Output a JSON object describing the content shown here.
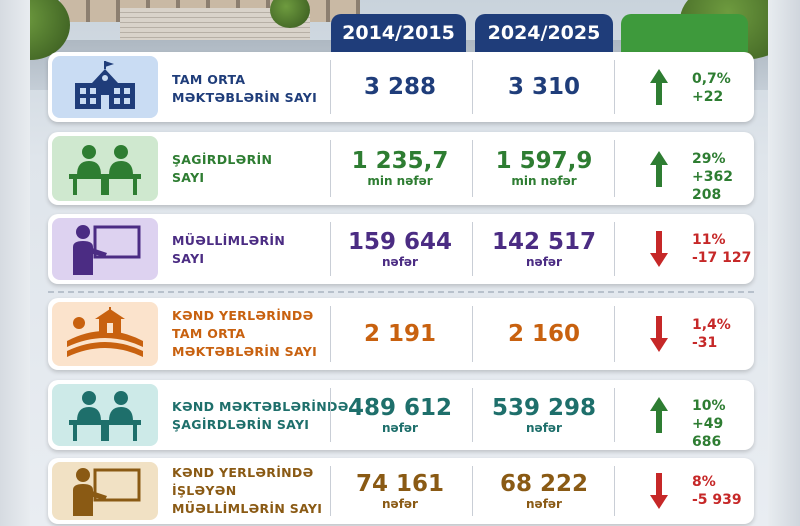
{
  "headers": {
    "col1": "2014/2015",
    "col2": "2024/2025"
  },
  "rows": [
    {
      "label": [
        "TAM ORTA",
        "MƏKTƏBLƏRİN SAYI"
      ],
      "v1": "3 288",
      "u1": "",
      "v2": "3 310",
      "u2": "",
      "direction": "up",
      "pct": "0,7%",
      "delta": "+22",
      "icon": "school-building-icon",
      "color": "#1f3d7a"
    },
    {
      "label": [
        "ŞAGİRDLƏRİN",
        "SAYI"
      ],
      "v1": "1 235,7",
      "u1": "min nəfər",
      "v2": "1 597,9",
      "u2": "min nəfər",
      "direction": "up",
      "pct": "29%",
      "delta": "+362 208",
      "icon": "students-at-desks-icon",
      "color": "#2e7d32"
    },
    {
      "label": [
        "MÜƏLLİMLƏRİN",
        "SAYI"
      ],
      "v1": "159 644",
      "u1": "nəfər",
      "v2": "142 517",
      "u2": "nəfər",
      "direction": "down",
      "pct": "11%",
      "delta": "-17 127",
      "icon": "teacher-at-board-icon",
      "color": "#4b2c83"
    },
    {
      "label": [
        "KƏND YERLƏRİNDƏ",
        "TAM ORTA",
        "MƏKTƏBLƏRİN SAYI"
      ],
      "v1": "2 191",
      "u1": "",
      "v2": "2 160",
      "u2": "",
      "direction": "down",
      "pct": "1,4%",
      "delta": "-31",
      "icon": "rural-school-icon",
      "color": "#c8610f"
    },
    {
      "label": [
        "KƏND MƏKTƏBLƏRİNDƏ",
        "ŞAGİRDLƏRİN SAYI"
      ],
      "v1": "489 612",
      "u1": "nəfər",
      "v2": "539 298",
      "u2": "nəfər",
      "direction": "up",
      "pct": "10%",
      "delta": "+49 686",
      "icon": "students-at-desks-icon",
      "color": "#1e6f6b"
    },
    {
      "label": [
        "KƏND YERLƏRİNDƏ",
        "İŞLƏYƏN",
        "MÜƏLLİMLƏRİN SAYI"
      ],
      "v1": "74 161",
      "u1": "nəfər",
      "v2": "68 222",
      "u2": "nəfər",
      "direction": "down",
      "pct": "8%",
      "delta": "-5 939",
      "icon": "teacher-at-board-icon",
      "color": "#8a5a14"
    }
  ],
  "colors": {
    "up": "#2e7d32",
    "down": "#c62828",
    "header_blue": "#1f3d7a",
    "header_green": "#3e9a3c"
  }
}
